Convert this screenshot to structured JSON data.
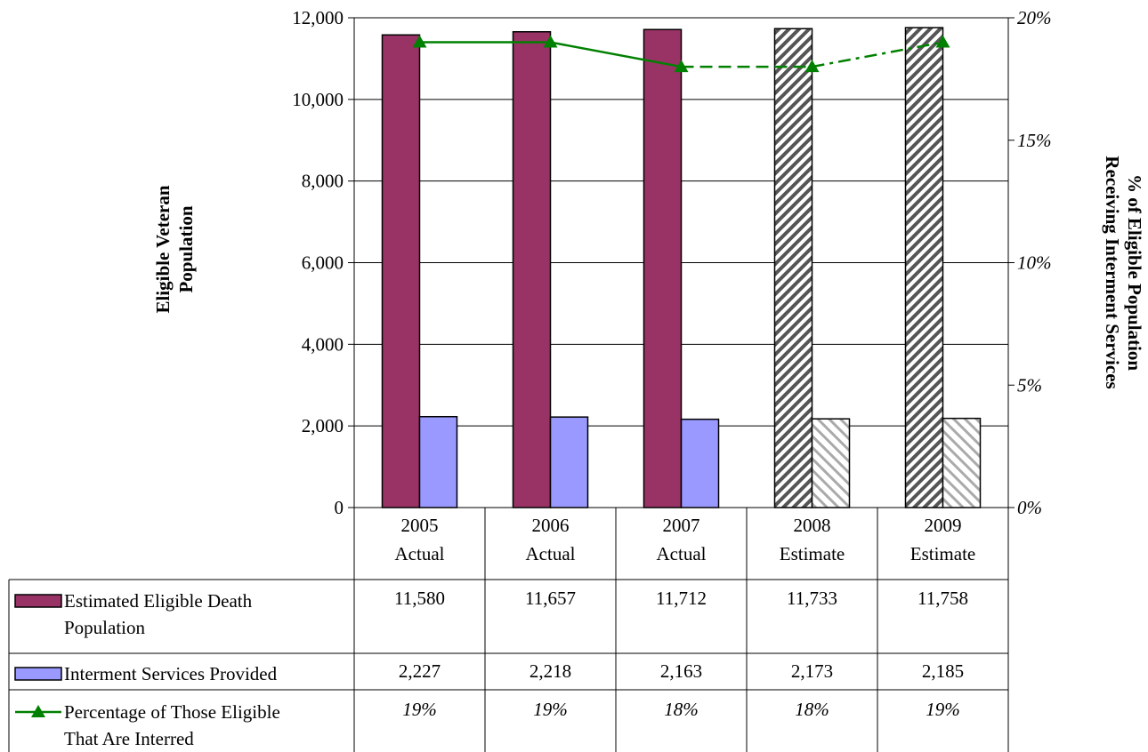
{
  "chart_data": {
    "type": "bar",
    "categories": [
      [
        "2005",
        "Actual"
      ],
      [
        "2006",
        "Actual"
      ],
      [
        "2007",
        "Actual"
      ],
      [
        "2008",
        "Estimate"
      ],
      [
        "2009",
        "Estimate"
      ]
    ],
    "projected_from_index": 3,
    "series": [
      {
        "name_lines": [
          "Estimated Eligible Death",
          "Population"
        ],
        "type": "bar",
        "axis": "left",
        "color": "#993366",
        "values": [
          11580,
          11657,
          11712,
          11733,
          11758
        ],
        "labels": [
          "11,580",
          "11,657",
          "11,712",
          "11,733",
          "11,758"
        ]
      },
      {
        "name_lines": [
          "Interment Services Provided"
        ],
        "type": "bar",
        "axis": "left",
        "color": "#9999ff",
        "values": [
          2227,
          2218,
          2163,
          2173,
          2185
        ],
        "labels": [
          "2,227",
          "2,218",
          "2,163",
          "2,173",
          "2,185"
        ]
      },
      {
        "name_lines": [
          "Percentage of Those Eligible",
          "That Are Interred"
        ],
        "type": "line",
        "axis": "right",
        "color": "#008000",
        "marker": "triangle",
        "values": [
          19,
          19,
          18,
          18,
          19
        ],
        "labels": [
          "19%",
          "19%",
          "18%",
          "18%",
          "19%"
        ]
      }
    ],
    "y_left": {
      "title_lines": [
        "Eligible Veteran",
        "Population"
      ],
      "ylim": [
        0,
        12000
      ],
      "ticks": [
        0,
        2000,
        4000,
        6000,
        8000,
        10000,
        12000
      ],
      "tick_labels": [
        "0",
        "2,000",
        "4,000",
        "6,000",
        "8,000",
        "10,000",
        "12,000"
      ]
    },
    "y_right": {
      "title_lines": [
        "% of Eligible Population",
        "Receiving Interment Services"
      ],
      "ylim": [
        0,
        20
      ],
      "ticks": [
        0,
        5,
        10,
        15,
        20
      ],
      "tick_labels": [
        "0%",
        "5%",
        "10%",
        "15%",
        "20%"
      ]
    },
    "grid": true,
    "legend": "data-table-below"
  }
}
